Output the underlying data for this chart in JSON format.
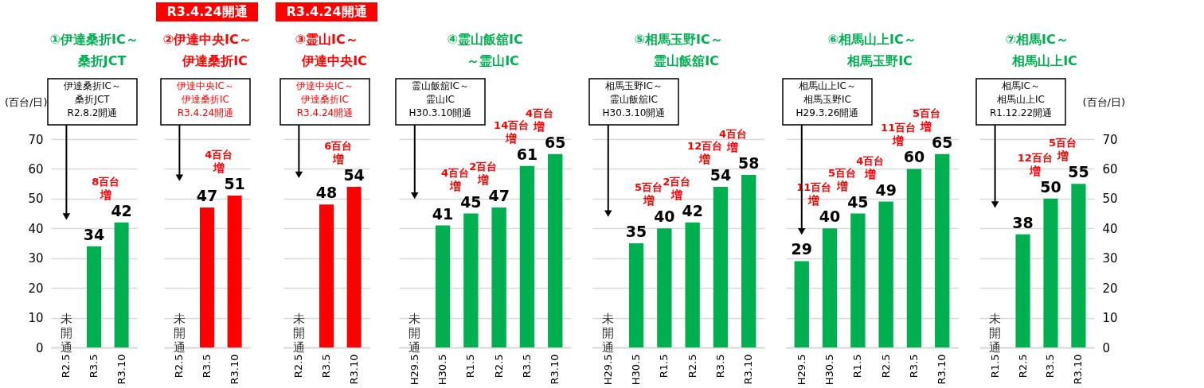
{
  "chart_data": [
    {
      "type": "bar",
      "title": "①伊達桑折IC～",
      "subtitle": "桑折JCT",
      "categories": [
        "R2.5",
        "R3.5",
        "R3.10"
      ],
      "values": [
        null,
        34,
        42
      ],
      "color": "#00b050",
      "data_labels": true,
      "ylim": [
        0,
        70
      ],
      "yticks": [
        0,
        10,
        20,
        30,
        40,
        50,
        60,
        70
      ],
      "grid": "y",
      "ylabel": "(百台/日)",
      "annotations": [
        "伊達桑折IC～",
        "桑折JCT",
        "R2.8.2開通",
        "未開通",
        "8百台",
        "増"
      ]
    },
    {
      "type": "bar",
      "title": "②伊達中央IC～",
      "subtitle": "伊達桑折IC",
      "categories": [
        "R2.5",
        "R3.5",
        "R3.10"
      ],
      "values": [
        null,
        47,
        51
      ],
      "color": "#ff0000",
      "data_labels": true,
      "ylim": [
        0,
        70
      ],
      "yticks": [
        0,
        10,
        20,
        30,
        40,
        50,
        60,
        70
      ],
      "grid": "y",
      "tick_labels": "x",
      "annotations": [
        "伊達中央IC～",
        "伊達桑折IC",
        "R3.4.24開通",
        "R3.4.24開通",
        "未開通",
        "4百台",
        "増"
      ]
    },
    {
      "type": "bar",
      "title": "③霊山IC～",
      "subtitle": "伊達中央IC",
      "categories": [
        "R2.5",
        "R3.5",
        "R3.10"
      ],
      "values": [
        null,
        48,
        54
      ],
      "color": "#ff0000",
      "data_labels": true,
      "ylim": [
        0,
        70
      ],
      "yticks": [
        0,
        10,
        20,
        30,
        40,
        50,
        60,
        70
      ],
      "grid": "y",
      "tick_labels": "x",
      "annotations": [
        "伊達中央IC～",
        "伊達桑折IC",
        "R3.4.24開通",
        "R3.4.24開通",
        "未開通",
        "6百台",
        "増"
      ]
    },
    {
      "type": "bar",
      "title": "④霊山飯舘IC",
      "subtitle": "～霊山IC",
      "categories": [
        "H29.5",
        "H30.5",
        "R1.5",
        "R2.5",
        "R3.5",
        "R3.10"
      ],
      "values": [
        null,
        41,
        45,
        47,
        61,
        65
      ],
      "color": "#00b050",
      "data_labels": true,
      "ylim": [
        0,
        70
      ],
      "yticks": [
        0,
        10,
        20,
        30,
        40,
        50,
        60,
        70
      ],
      "grid": "y",
      "tick_labels": "x",
      "annotations": [
        "霊山飯舘IC～",
        "霊山IC",
        "H30.3.10開通",
        "未開通",
        "4百台",
        "増",
        "2百台",
        "増",
        "14百台",
        "増",
        "4百台",
        "増"
      ]
    },
    {
      "type": "bar",
      "title": "⑤相馬玉野IC～",
      "subtitle": "霊山飯舘IC",
      "categories": [
        "H29.5",
        "H30.5",
        "R1.5",
        "R2.5",
        "R3.5",
        "R3.10"
      ],
      "values": [
        null,
        35,
        40,
        42,
        54,
        58
      ],
      "color": "#00b050",
      "data_labels": true,
      "ylim": [
        0,
        70
      ],
      "yticks": [
        0,
        10,
        20,
        30,
        40,
        50,
        60,
        70
      ],
      "grid": "y",
      "tick_labels": "x",
      "annotations": [
        "相馬玉野IC～",
        "霊山飯舘IC",
        "H30.3.10開通",
        "未開通",
        "5百台",
        "増",
        "2百台",
        "増",
        "12百台",
        "増",
        "4百台",
        "増"
      ]
    },
    {
      "type": "bar",
      "title": "⑥相馬山上IC～",
      "subtitle": "相馬玉野IC",
      "categories": [
        "H29.5",
        "H30.5",
        "R1.5",
        "R2.5",
        "R3.5",
        "R3.10"
      ],
      "values": [
        29,
        40,
        45,
        49,
        60,
        65
      ],
      "color": "#00b050",
      "data_labels": true,
      "ylim": [
        0,
        70
      ],
      "yticks": [
        0,
        10,
        20,
        30,
        40,
        50,
        60,
        70
      ],
      "grid": "y",
      "tick_labels": "x",
      "annotations": [
        "相馬山上IC～",
        "相馬玉野IC",
        "H29.3.26開通",
        "11百台",
        "増",
        "5百台",
        "増",
        "4百台",
        "増",
        "11百台",
        "増",
        "5百台",
        "増"
      ]
    },
    {
      "type": "bar",
      "title": "⑦相馬IC～",
      "subtitle": "相馬山上IC",
      "categories": [
        "R1.5",
        "R2.5",
        "R3.5",
        "R3.10"
      ],
      "values": [
        null,
        38,
        50,
        55
      ],
      "color": "#00b050",
      "data_labels": true,
      "ylim": [
        0,
        70
      ],
      "yticks": [
        0,
        10,
        20,
        30,
        40,
        50,
        60,
        70
      ],
      "grid": "y",
      "ylabel": "(百台/日)",
      "annotations": [
        "相馬IC～",
        "相馬山上IC",
        "R1.12.22開通",
        "未開通",
        "12百台",
        "増",
        "5百台",
        "増"
      ]
    }
  ]
}
